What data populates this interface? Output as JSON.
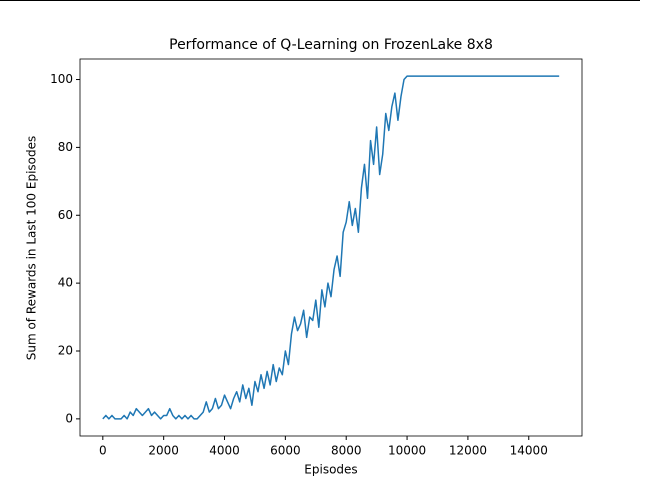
{
  "chart_data": {
    "type": "line",
    "title": "Performance of Q-Learning on FrozenLake 8x8",
    "x_label": "Episodes",
    "y_label": "Sum of Rewards in Last 100 Episodes",
    "x": [
      0,
      100,
      200,
      300,
      400,
      500,
      600,
      700,
      800,
      900,
      1000,
      1100,
      1200,
      1300,
      1400,
      1500,
      1600,
      1700,
      1800,
      1900,
      2000,
      2100,
      2200,
      2300,
      2400,
      2500,
      2600,
      2700,
      2800,
      2900,
      3000,
      3100,
      3200,
      3300,
      3400,
      3500,
      3600,
      3700,
      3800,
      3900,
      4000,
      4100,
      4200,
      4300,
      4400,
      4500,
      4600,
      4700,
      4800,
      4900,
      5000,
      5100,
      5200,
      5300,
      5400,
      5500,
      5600,
      5700,
      5800,
      5900,
      6000,
      6100,
      6200,
      6300,
      6400,
      6500,
      6600,
      6700,
      6800,
      6900,
      7000,
      7100,
      7200,
      7300,
      7400,
      7500,
      7600,
      7700,
      7800,
      7900,
      8000,
      8100,
      8200,
      8300,
      8400,
      8500,
      8600,
      8700,
      8800,
      8900,
      9000,
      9100,
      9200,
      9300,
      9400,
      9500,
      9600,
      9700,
      9800,
      9900,
      10000,
      15000
    ],
    "series": [
      {
        "name": "Q-Learning",
        "color": "#1f77b4",
        "values": [
          0,
          1,
          0,
          1,
          0,
          0,
          0,
          1,
          0,
          2,
          1,
          3,
          2,
          1,
          2,
          3,
          1,
          2,
          1,
          0,
          1,
          1,
          3,
          1,
          0,
          1,
          0,
          1,
          0,
          1,
          0,
          0,
          1,
          2,
          5,
          2,
          3,
          6,
          3,
          4,
          7,
          5,
          3,
          6,
          8,
          5,
          10,
          6,
          9,
          4,
          11,
          8,
          13,
          9,
          14,
          10,
          16,
          11,
          15,
          13,
          20,
          16,
          25,
          30,
          26,
          28,
          32,
          24,
          30,
          29,
          35,
          27,
          38,
          33,
          40,
          36,
          44,
          48,
          42,
          55,
          58,
          64,
          57,
          62,
          55,
          68,
          75,
          65,
          82,
          75,
          86,
          72,
          78,
          90,
          85,
          92,
          96,
          88,
          95,
          100,
          101,
          101
        ]
      }
    ],
    "xlim": [
      -750,
      15750
    ],
    "ylim": [
      -5.05,
      106.05
    ],
    "xticks": [
      0,
      2000,
      4000,
      6000,
      8000,
      10000,
      12000,
      14000
    ],
    "yticks": [
      0,
      20,
      40,
      60,
      80,
      100
    ]
  }
}
